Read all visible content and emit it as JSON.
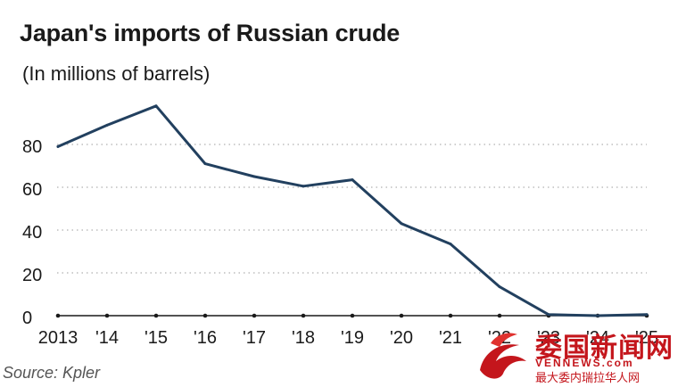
{
  "chart_data": {
    "type": "line",
    "title": "Japan's imports of Russian crude",
    "subtitle": "(In millions of barrels)",
    "source": "Source: Kpler",
    "x": [
      "2013",
      "'14",
      "'15",
      "'16",
      "'17",
      "'18",
      "'19",
      "'20",
      "'21",
      "'22",
      "'23",
      "'24",
      "'25"
    ],
    "series": [
      {
        "values": [
          79,
          89,
          98,
          71,
          65,
          60.5,
          63.5,
          43,
          33.5,
          13.5,
          0.5,
          0,
          0.5
        ]
      }
    ],
    "yticks": [
      0,
      20,
      40,
      60,
      80
    ],
    "ylim": [
      0,
      98
    ],
    "grid": "horizontal dotted",
    "line_color": "#22405f",
    "grid_color": "#b0b0b0",
    "axis_color": "#1a1a1a"
  },
  "watermark": {
    "main": "委国新闻网",
    "url": "VENNEWS.com",
    "sub": "最大委内瑞拉华人网",
    "color": "#c4161c"
  }
}
